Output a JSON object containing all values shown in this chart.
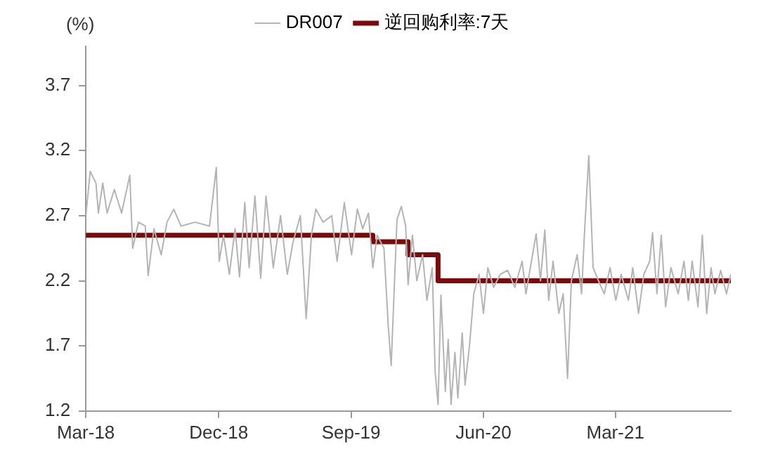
{
  "chart_data": {
    "type": "line",
    "ylabel": "(%)",
    "legend": "top",
    "grid": false,
    "marker": "none",
    "xlim": [
      "2018-03-01",
      "2021-10-26"
    ],
    "xticks": [
      {
        "value": "2018-03-01",
        "label": "Mar-18"
      },
      {
        "value": "2018-12-01",
        "label": "Dec-18"
      },
      {
        "value": "2019-09-01",
        "label": "Sep-19"
      },
      {
        "value": "2020-06-01",
        "label": "Jun-20"
      },
      {
        "value": "2021-03-01",
        "label": "Mar-21"
      }
    ],
    "ylim": [
      1.2,
      4.0
    ],
    "yticks": [
      1.2,
      1.7,
      2.2,
      2.7,
      3.2,
      3.7
    ],
    "series": [
      {
        "name": "DR007",
        "color": "#b4b4b4",
        "x": [
          "2018-03-01",
          "2018-03-10",
          "2018-03-22",
          "2018-03-27",
          "2018-04-05",
          "2018-04-14",
          "2018-04-29",
          "2018-05-14",
          "2018-05-31",
          "2018-06-06",
          "2018-06-18",
          "2018-07-02",
          "2018-07-08",
          "2018-07-20",
          "2018-08-04",
          "2018-08-16",
          "2018-08-30",
          "2018-09-14",
          "2018-10-13",
          "2018-11-12",
          "2018-11-26",
          "2018-12-02",
          "2018-12-11",
          "2018-12-23",
          "2019-01-04",
          "2019-01-13",
          "2019-01-24",
          "2019-02-02",
          "2019-02-14",
          "2019-02-26",
          "2019-03-09",
          "2019-03-24",
          "2019-04-08",
          "2019-04-22",
          "2019-05-04",
          "2019-05-19",
          "2019-05-31",
          "2019-06-11",
          "2019-06-20",
          "2019-07-05",
          "2019-07-23",
          "2019-08-03",
          "2019-08-18",
          "2019-09-02",
          "2019-09-14",
          "2019-09-25",
          "2019-10-07",
          "2019-10-16",
          "2019-10-25",
          "2019-11-08",
          "2019-11-17",
          "2019-11-23",
          "2019-12-05",
          "2019-12-14",
          "2019-12-23",
          "2019-12-28",
          "2020-01-06",
          "2020-01-15",
          "2020-01-27",
          "2020-02-05",
          "2020-02-16",
          "2020-02-22",
          "2020-02-28",
          "2020-03-05",
          "2020-03-14",
          "2020-03-20",
          "2020-03-26",
          "2020-04-03",
          "2020-04-09",
          "2020-04-18",
          "2020-04-24",
          "2020-05-03",
          "2020-05-12",
          "2020-05-23",
          "2020-06-01",
          "2020-06-10",
          "2020-06-22",
          "2020-07-06",
          "2020-07-21",
          "2020-08-05",
          "2020-08-20",
          "2020-08-28",
          "2020-09-06",
          "2020-09-18",
          "2020-09-27",
          "2020-10-06",
          "2020-10-14",
          "2020-10-23",
          "2020-11-04",
          "2020-11-13",
          "2020-11-22",
          "2020-11-30",
          "2020-12-12",
          "2020-12-21",
          "2020-12-27",
          "2021-01-05",
          "2021-01-14",
          "2021-01-25",
          "2021-02-06",
          "2021-02-18",
          "2021-03-02",
          "2021-03-13",
          "2021-03-28",
          "2021-04-06",
          "2021-04-18",
          "2021-04-29",
          "2021-05-11",
          "2021-05-17",
          "2021-05-26",
          "2021-06-04",
          "2021-06-13",
          "2021-06-24",
          "2021-07-09",
          "2021-07-21",
          "2021-07-30",
          "2021-08-07",
          "2021-08-19",
          "2021-08-28",
          "2021-09-06",
          "2021-09-15",
          "2021-09-23",
          "2021-10-05",
          "2021-10-17",
          "2021-10-26"
        ],
        "values": [
          2.7,
          3.04,
          2.95,
          2.72,
          2.95,
          2.72,
          2.9,
          2.72,
          3.01,
          2.45,
          2.65,
          2.62,
          2.24,
          2.6,
          2.4,
          2.65,
          2.75,
          2.62,
          2.65,
          2.62,
          3.07,
          2.35,
          2.55,
          2.25,
          2.6,
          2.23,
          2.8,
          2.3,
          2.85,
          2.22,
          2.85,
          2.3,
          2.7,
          2.25,
          2.5,
          2.7,
          1.91,
          2.55,
          2.75,
          2.65,
          2.7,
          2.35,
          2.8,
          2.4,
          2.75,
          2.6,
          2.72,
          2.3,
          2.55,
          2.45,
          1.85,
          1.55,
          2.67,
          2.77,
          2.62,
          2.17,
          2.55,
          2.2,
          2.4,
          2.05,
          2.3,
          1.5,
          1.25,
          2.09,
          1.35,
          1.75,
          1.25,
          1.65,
          1.3,
          1.8,
          1.4,
          1.7,
          2.1,
          2.25,
          1.95,
          2.3,
          2.15,
          2.25,
          2.28,
          2.15,
          2.35,
          2.1,
          2.3,
          2.56,
          2.2,
          2.59,
          2.05,
          2.35,
          1.95,
          2.1,
          1.45,
          2.2,
          2.4,
          2.1,
          2.56,
          3.16,
          2.3,
          2.2,
          2.1,
          2.3,
          2.05,
          2.25,
          2.05,
          2.3,
          1.95,
          2.25,
          2.35,
          2.57,
          2.1,
          2.55,
          2.0,
          2.3,
          2.1,
          2.35,
          2.05,
          2.35,
          2.0,
          2.55,
          1.95,
          2.3,
          2.1,
          2.28,
          2.1,
          2.25
        ]
      },
      {
        "name": "逆回购利率:7天",
        "type": "step",
        "color": "#7b0a0a",
        "x": [
          "2018-03-01",
          "2019-10-16",
          "2019-12-28",
          "2020-02-28",
          "2021-10-26"
        ],
        "values": [
          2.55,
          2.5,
          2.4,
          2.2,
          2.2
        ]
      }
    ]
  }
}
